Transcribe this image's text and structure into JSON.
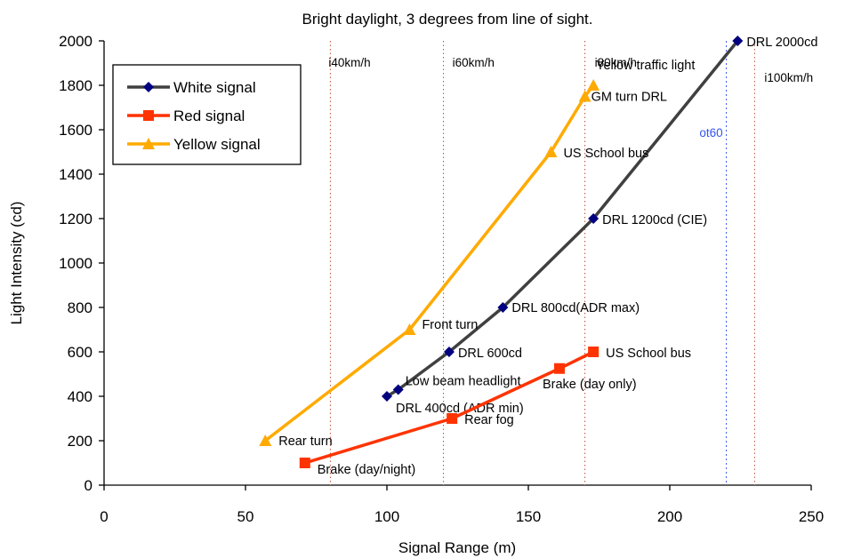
{
  "chart_data": {
    "type": "line",
    "title": "Bright daylight, 3 degrees from line of sight.",
    "xlabel": "Signal Range (m)",
    "ylabel": "Light Intensity (cd)",
    "xlim": [
      0,
      250
    ],
    "ylim": [
      0,
      2000
    ],
    "xticks": [
      "0",
      "50",
      "100",
      "150",
      "200",
      "250"
    ],
    "yticks": [
      "0",
      "200",
      "400",
      "600",
      "800",
      "1000",
      "1200",
      "1400",
      "1600",
      "1800",
      "2000"
    ],
    "legend_position": "top-left",
    "series": [
      {
        "name": "White signal",
        "color": "#404040",
        "marker": "diamond",
        "marker_color": "#000080",
        "points": [
          {
            "x": 100,
            "y": 400,
            "label": "DRL 400cd (ADR min)"
          },
          {
            "x": 104,
            "y": 430,
            "label": "Low beam headlight"
          },
          {
            "x": 122,
            "y": 600,
            "label": "DRL 600cd"
          },
          {
            "x": 141,
            "y": 800,
            "label": "DRL 800cd(ADR max)"
          },
          {
            "x": 173,
            "y": 1200,
            "label": "DRL 1200cd (CIE)"
          },
          {
            "x": 224,
            "y": 2000,
            "label": "DRL 2000cd"
          }
        ]
      },
      {
        "name": "Red signal",
        "color": "#ff3300",
        "marker": "square",
        "marker_color": "#ff3300",
        "points": [
          {
            "x": 71,
            "y": 100,
            "label": "Brake (day/night)"
          },
          {
            "x": 123,
            "y": 300,
            "label": "Rear fog"
          },
          {
            "x": 161,
            "y": 525,
            "label": "Brake (day only)"
          },
          {
            "x": 173,
            "y": 600,
            "label": "US School bus"
          }
        ]
      },
      {
        "name": "Yellow signal",
        "color": "#ffaa00",
        "marker": "triangle",
        "marker_color": "#ffaa00",
        "points": [
          {
            "x": 57,
            "y": 200,
            "label": "Rear turn"
          },
          {
            "x": 108,
            "y": 700,
            "label": "Front turn"
          },
          {
            "x": 158,
            "y": 1500,
            "label": "US School bus"
          },
          {
            "x": 170,
            "y": 1750,
            "label": "GM turn DRL"
          },
          {
            "x": 173,
            "y": 1800,
            "label": "Yellow traffic light"
          }
        ]
      }
    ],
    "reference_lines": [
      {
        "x": 80,
        "label": "i40km/h",
        "color": "#c05030"
      },
      {
        "x": 120,
        "label": "i60km/h",
        "color": "#c05030"
      },
      {
        "x": 170,
        "label": "i80km/h",
        "color": "#c05030"
      },
      {
        "x": 230,
        "label": "i100km/h",
        "color": "#c05030"
      },
      {
        "x": 220,
        "label": "ot60",
        "color": "#3355ee"
      }
    ]
  }
}
